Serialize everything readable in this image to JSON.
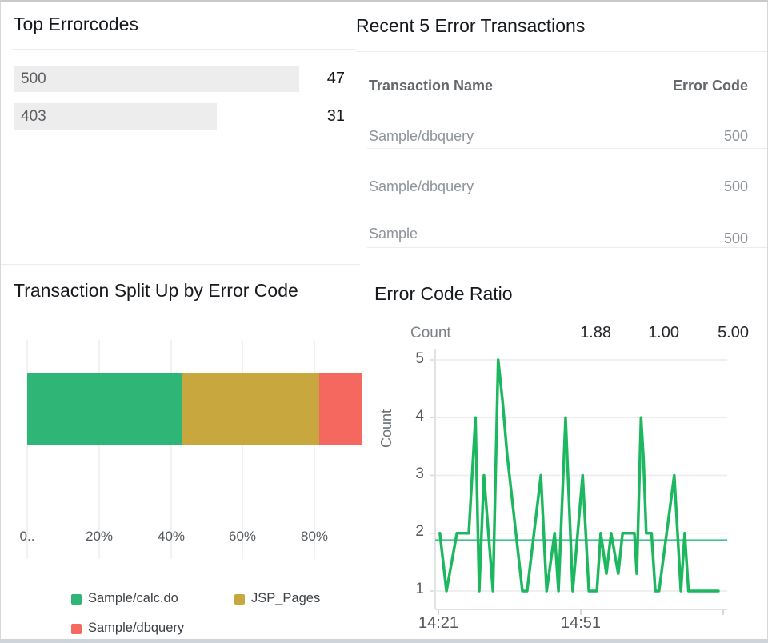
{
  "panels": {
    "top_errorcodes": {
      "title": "Top Errorcodes",
      "bars": [
        {
          "label": "500",
          "value": 47
        },
        {
          "label": "403",
          "value": 31
        }
      ],
      "bar_bg_color": "#ededed"
    },
    "recent_errors": {
      "title": "Recent 5 Error Transactions",
      "columns": [
        "Transaction Name",
        "Error Code"
      ],
      "rows": [
        {
          "name": "Sample/dbquery",
          "code": "500"
        },
        {
          "name": "Sample/dbquery",
          "code": "500"
        },
        {
          "name": "Sample",
          "code": "500"
        }
      ]
    },
    "split_up": {
      "title": "Transaction Split Up by Error Code",
      "x_ticks": [
        "0..",
        "20%",
        "40%",
        "60%",
        "80%"
      ],
      "legend": [
        {
          "label": "Sample/calc.do",
          "color": "#2fb576"
        },
        {
          "label": "JSP_Pages",
          "color": "#c7a73e"
        },
        {
          "label": "Sample/dbquery",
          "color": "#f4685f"
        }
      ]
    },
    "error_ratio": {
      "title": "Error Code Ratio",
      "stat_label": "Count",
      "avg": "1.88",
      "min": "1.00",
      "max": "5.00",
      "y_axis_label": "Count",
      "y_ticks": [
        "5",
        "4",
        "3",
        "2",
        "1"
      ],
      "x_ticks": [
        "14:21",
        "14:51"
      ]
    }
  },
  "chart_data": [
    {
      "type": "bar",
      "orientation": "horizontal",
      "title": "Top Errorcodes",
      "categories": [
        "500",
        "403"
      ],
      "values": [
        47,
        31
      ],
      "bar_color": "#ededed"
    },
    {
      "type": "table",
      "title": "Recent 5 Error Transactions",
      "columns": [
        "Transaction Name",
        "Error Code"
      ],
      "rows": [
        [
          "Sample/dbquery",
          "500"
        ],
        [
          "Sample/dbquery",
          "500"
        ],
        [
          "Sample",
          "500"
        ]
      ]
    },
    {
      "type": "bar",
      "stacked": true,
      "orientation": "horizontal",
      "title": "Transaction Split Up by Error Code",
      "xlabel_ticks": [
        "0..",
        "20%",
        "40%",
        "60%",
        "80%"
      ],
      "xlim_percent": [
        0,
        100
      ],
      "series": [
        {
          "name": "Sample/calc.do",
          "percent": 43.2,
          "color": "#2fb576"
        },
        {
          "name": "JSP_Pages",
          "percent": 38.1,
          "color": "#c7a73e"
        },
        {
          "name": "Sample/dbquery",
          "percent": 18.7,
          "color": "#f4685f"
        }
      ]
    },
    {
      "type": "line",
      "title": "Error Code Ratio",
      "ylabel": "Count",
      "ylim": [
        1,
        5
      ],
      "y_ticks": [
        1,
        2,
        3,
        4,
        5
      ],
      "x_axis_tick_labels": [
        "14:21",
        "14:51"
      ],
      "x_unit": "minutes after 14:21",
      "avg": 1.88,
      "min": 1.0,
      "max": 5.0,
      "line_color": "#1cb75f",
      "avg_color": "#45c08e",
      "points": [
        [
          0.3,
          2
        ],
        [
          1.7,
          1
        ],
        [
          3.9,
          2
        ],
        [
          6.4,
          2
        ],
        [
          7.8,
          4
        ],
        [
          8.6,
          1
        ],
        [
          9.6,
          3
        ],
        [
          11.5,
          1
        ],
        [
          12.6,
          5
        ],
        [
          13.5,
          4.3
        ],
        [
          14.5,
          3.35
        ],
        [
          17.7,
          1
        ],
        [
          18.7,
          1
        ],
        [
          21.6,
          3
        ],
        [
          22.8,
          1
        ],
        [
          24.5,
          2
        ],
        [
          25.3,
          1
        ],
        [
          26.8,
          4
        ],
        [
          28.3,
          1
        ],
        [
          30.4,
          3
        ],
        [
          31.7,
          1
        ],
        [
          33.4,
          1
        ],
        [
          34.2,
          2
        ],
        [
          35.4,
          1.3
        ],
        [
          36.4,
          2
        ],
        [
          37.9,
          1.3
        ],
        [
          38.8,
          2
        ],
        [
          41.3,
          2
        ],
        [
          41.8,
          1.3
        ],
        [
          42.7,
          4
        ],
        [
          43.2,
          3.3
        ],
        [
          43.8,
          2
        ],
        [
          44.9,
          2
        ],
        [
          45.7,
          1
        ],
        [
          46.5,
          1
        ],
        [
          49.7,
          3
        ],
        [
          51.1,
          1
        ],
        [
          51.9,
          2
        ],
        [
          52.7,
          1
        ],
        [
          54,
          1
        ],
        [
          59,
          1
        ]
      ]
    }
  ]
}
